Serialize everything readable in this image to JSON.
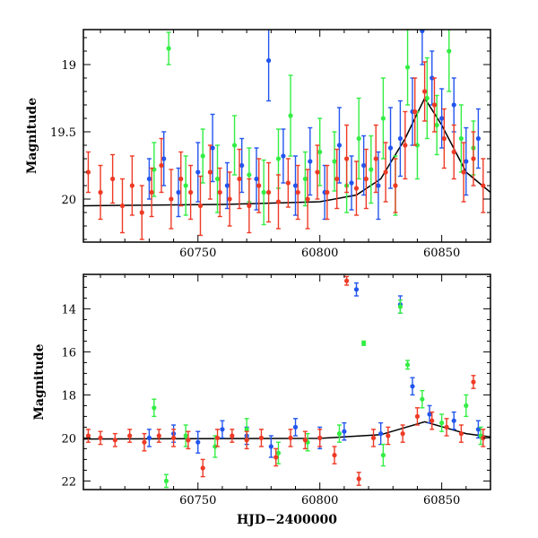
{
  "chart_data": [
    {
      "type": "scatter",
      "panel": "top",
      "xlabel": "",
      "ylabel": "Magnitude",
      "xlim": [
        60703,
        60870
      ],
      "ylim": [
        20.32,
        18.74
      ],
      "y_inverted": true,
      "x_ticks": [
        60750,
        60800,
        60850
      ],
      "x_tick_labels": [
        "60750",
        "60800",
        "60850"
      ],
      "y_ticks": [
        19,
        19.5,
        20
      ],
      "y_tick_labels": [
        "19",
        "19.5",
        "20"
      ],
      "series": [
        {
          "color": "#2255ee",
          "x": [
            60730,
            60736,
            60742,
            60750,
            60756,
            60762,
            60768,
            60774,
            60779,
            60785,
            60790,
            60796,
            60802,
            60808,
            60813,
            60818,
            60824,
            60829,
            60833,
            60838,
            60842,
            60846,
            60850,
            60855,
            60860,
            60865
          ],
          "y": [
            19.85,
            19.7,
            19.95,
            19.8,
            19.62,
            19.9,
            19.75,
            19.85,
            18.97,
            19.68,
            19.9,
            19.72,
            19.95,
            19.6,
            19.88,
            19.75,
            19.9,
            19.62,
            19.55,
            19.35,
            18.75,
            19.1,
            19.4,
            19.3,
            19.72,
            19.55
          ],
          "err": [
            0.15,
            0.2,
            0.18,
            0.22,
            0.25,
            0.17,
            0.2,
            0.23,
            0.3,
            0.2,
            0.22,
            0.25,
            0.2,
            0.28,
            0.2,
            0.22,
            0.25,
            0.3,
            0.28,
            0.25,
            0.25,
            0.2,
            0.22,
            0.2,
            0.25,
            0.22
          ]
        },
        {
          "color": "#33ee44",
          "x": [
            60732,
            60738,
            60745,
            60752,
            60758,
            60765,
            60771,
            60777,
            60783,
            60788,
            60794,
            60800,
            60806,
            60811,
            60816,
            60821,
            60826,
            60831,
            60836,
            60840,
            60844,
            60848,
            60853,
            60858,
            60863
          ],
          "y": [
            19.78,
            18.88,
            19.9,
            19.68,
            19.85,
            19.6,
            19.82,
            19.95,
            19.7,
            19.38,
            19.85,
            19.65,
            19.72,
            19.9,
            19.55,
            19.78,
            19.4,
            19.9,
            19.02,
            19.6,
            19.25,
            19.45,
            18.9,
            19.55,
            19.62
          ],
          "err": [
            0.2,
            0.12,
            0.22,
            0.2,
            0.25,
            0.22,
            0.2,
            0.24,
            0.22,
            0.3,
            0.2,
            0.25,
            0.22,
            0.2,
            0.3,
            0.25,
            0.3,
            0.22,
            0.28,
            0.25,
            0.3,
            0.22,
            0.3,
            0.25,
            0.2
          ]
        },
        {
          "color": "#ee3a25",
          "x": [
            60705,
            60710,
            60715,
            60719,
            60723,
            60727,
            60731,
            60735,
            60739,
            60743,
            60747,
            60751,
            60755,
            60759,
            60763,
            60767,
            60771,
            60775,
            60779,
            60783,
            60787,
            60791,
            60795,
            60799,
            60803,
            60807,
            60811,
            60815,
            60819,
            60823,
            60827,
            60831,
            60835,
            60839,
            60843,
            60847,
            60851,
            60855,
            60859,
            60863,
            60867
          ],
          "y": [
            19.8,
            19.95,
            19.85,
            20.05,
            19.9,
            20.1,
            19.95,
            19.75,
            20.0,
            19.85,
            19.95,
            20.05,
            19.8,
            19.95,
            20.0,
            19.85,
            20.05,
            19.9,
            19.95,
            20.02,
            19.88,
            19.95,
            20.0,
            19.8,
            19.95,
            19.85,
            19.7,
            19.92,
            19.85,
            19.7,
            19.8,
            19.9,
            19.6,
            19.35,
            19.2,
            19.3,
            19.55,
            19.65,
            19.8,
            19.7,
            19.9
          ],
          "err": [
            0.15,
            0.2,
            0.18,
            0.2,
            0.22,
            0.2,
            0.18,
            0.2,
            0.22,
            0.2,
            0.2,
            0.22,
            0.2,
            0.18,
            0.2,
            0.22,
            0.2,
            0.2,
            0.22,
            0.2,
            0.18,
            0.2,
            0.22,
            0.2,
            0.2,
            0.22,
            0.25,
            0.2,
            0.22,
            0.25,
            0.22,
            0.2,
            0.25,
            0.25,
            0.22,
            0.2,
            0.22,
            0.2,
            0.22,
            0.2,
            0.2
          ]
        }
      ],
      "model_curve": {
        "color": "#000000",
        "x": [
          60703,
          60760,
          60800,
          60815,
          60825,
          60835,
          60843,
          60850,
          60860,
          60870
        ],
        "y": [
          20.05,
          20.04,
          20.02,
          19.97,
          19.85,
          19.55,
          19.25,
          19.45,
          19.8,
          19.95
        ]
      }
    },
    {
      "type": "scatter",
      "panel": "bottom",
      "xlabel": "HJD−2400000",
      "ylabel": "Magnitude",
      "xlim": [
        60703,
        60870
      ],
      "ylim": [
        22.4,
        12.4
      ],
      "y_inverted": true,
      "x_ticks": [
        60750,
        60800,
        60850
      ],
      "x_tick_labels": [
        "60750",
        "60800",
        "60850"
      ],
      "y_ticks": [
        14,
        16,
        18,
        20,
        22
      ],
      "y_tick_labels": [
        "14",
        "16",
        "18",
        "20",
        "22"
      ],
      "series": [
        {
          "color": "#2255ee",
          "x": [
            60730,
            60740,
            60750,
            60760,
            60770,
            60780,
            60790,
            60800,
            60810,
            60815,
            60825,
            60833,
            60838,
            60845,
            60855,
            60865
          ],
          "y": [
            20.0,
            19.8,
            20.2,
            19.6,
            19.9,
            20.4,
            19.5,
            20.0,
            19.7,
            13.1,
            19.8,
            13.8,
            17.6,
            18.9,
            19.2,
            19.6
          ],
          "err": [
            0.4,
            0.4,
            0.5,
            0.4,
            0.4,
            0.5,
            0.4,
            0.5,
            0.4,
            0.3,
            0.5,
            0.4,
            0.4,
            0.4,
            0.4,
            0.4
          ]
        },
        {
          "color": "#33ee44",
          "x": [
            60732,
            60737,
            60745,
            60757,
            60770,
            60783,
            60795,
            60808,
            60818,
            60826,
            60833,
            60836,
            60842,
            60850,
            60860,
            60866
          ],
          "y": [
            18.6,
            22.0,
            19.9,
            20.4,
            19.6,
            20.7,
            20.2,
            19.8,
            15.6,
            20.8,
            13.9,
            16.6,
            18.2,
            19.3,
            18.5,
            19.9
          ],
          "err": [
            0.4,
            0.3,
            0.5,
            0.5,
            0.5,
            0.5,
            0.4,
            0.4,
            0.1,
            0.5,
            0.3,
            0.2,
            0.4,
            0.4,
            0.5,
            0.4
          ]
        },
        {
          "color": "#ee3a25",
          "x": [
            60705,
            60710,
            60716,
            60722,
            60728,
            60734,
            60740,
            60746,
            60752,
            60758,
            60764,
            60770,
            60776,
            60782,
            60788,
            60794,
            60800,
            60806,
            60811,
            60816,
            60822,
            60828,
            60834,
            60840,
            60846,
            60852,
            60858,
            60863,
            60867
          ],
          "y": [
            19.9,
            20.0,
            20.1,
            19.9,
            20.2,
            19.9,
            20.0,
            20.1,
            21.4,
            20.0,
            19.9,
            20.1,
            20.0,
            20.9,
            20.0,
            20.1,
            20.0,
            20.8,
            12.7,
            21.9,
            20.0,
            19.9,
            19.8,
            19.0,
            19.2,
            19.5,
            19.8,
            17.4,
            20.0
          ],
          "err": [
            0.3,
            0.3,
            0.3,
            0.3,
            0.4,
            0.3,
            0.4,
            0.4,
            0.4,
            0.4,
            0.3,
            0.4,
            0.4,
            0.4,
            0.4,
            0.4,
            0.4,
            0.4,
            0.2,
            0.3,
            0.4,
            0.4,
            0.4,
            0.4,
            0.4,
            0.4,
            0.4,
            0.3,
            0.4
          ]
        }
      ],
      "model_curve": {
        "color": "#000000",
        "x": [
          60703,
          60800,
          60825,
          60843,
          60860,
          60870
        ],
        "y": [
          20.05,
          20.02,
          19.85,
          19.25,
          19.8,
          19.95
        ]
      }
    }
  ]
}
